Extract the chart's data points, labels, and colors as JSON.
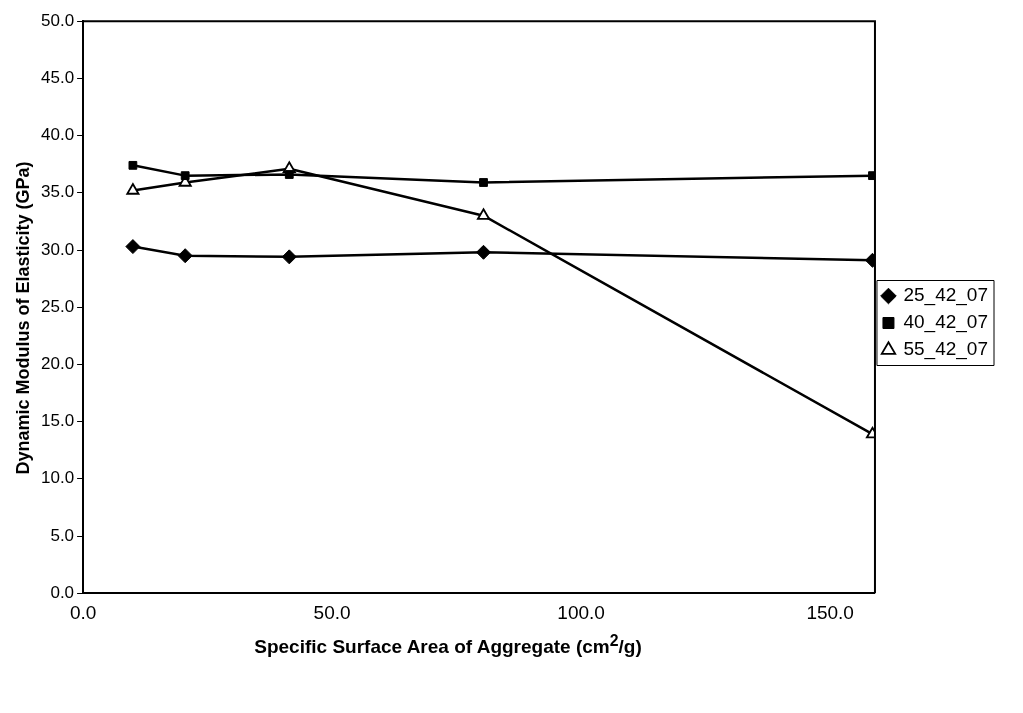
{
  "chart_data": {
    "type": "line",
    "xlabel": "Specific Surface Area of Aggregate (cm$^{2}$/g)",
    "ylabel": "Dynamic Modulus of Elasticity (GPa)",
    "xlim": [
      0,
      159
    ],
    "xticks": [
      {
        "value": 0,
        "label": "0.0"
      },
      {
        "value": 50,
        "label": "50.0"
      },
      {
        "value": 100,
        "label": "100.0"
      },
      {
        "value": 150,
        "label": "150.0"
      }
    ],
    "ylim": [
      0,
      50
    ],
    "yticks": [
      {
        "value": 0,
        "label": "0.0"
      },
      {
        "value": 5,
        "label": "5.0"
      },
      {
        "value": 10,
        "label": "10.0"
      },
      {
        "value": 15,
        "label": "15.0"
      },
      {
        "value": 20,
        "label": "20.0"
      },
      {
        "value": 25,
        "label": "25.0"
      },
      {
        "value": 30,
        "label": "30.0"
      },
      {
        "value": 35,
        "label": "35.0"
      },
      {
        "value": 40,
        "label": "40.0"
      },
      {
        "value": 45,
        "label": "45.0"
      },
      {
        "value": 50,
        "label": "50.0"
      }
    ],
    "x": [
      10,
      20.5,
      41.4,
      80.4,
      158.5
    ],
    "series": [
      {
        "name": "25_42_07",
        "color": "#000000",
        "marker": "diamond",
        "values": [
          30.3,
          29.5,
          29.4,
          29.8,
          29.1
        ]
      },
      {
        "name": "40_42_07",
        "color": "#000000",
        "marker": "square",
        "values": [
          37.4,
          36.5,
          36.6,
          35.9,
          36.5
        ]
      },
      {
        "name": "55_42_07",
        "color": "#000000",
        "marker": "triangle",
        "values": [
          35.2,
          35.9,
          37.1,
          33.0,
          13.9
        ]
      }
    ],
    "grid": false,
    "legend": "right",
    "line_style": "solid"
  }
}
